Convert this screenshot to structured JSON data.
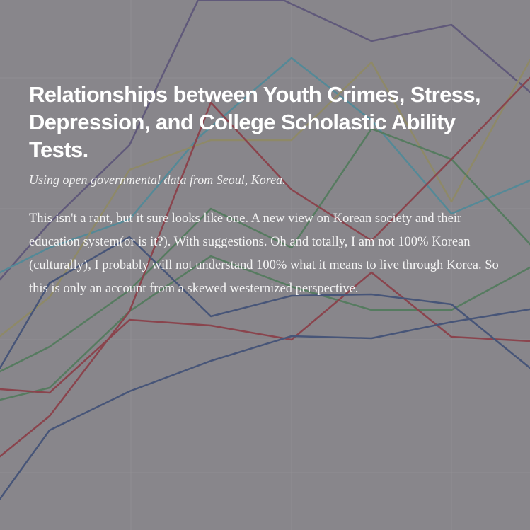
{
  "article": {
    "title": "Relationships between Youth Crimes, Stress, Depression, and College Scholastic Ability Tests.",
    "subtitle": "Using open governmental data from Seoul, Korea.",
    "intro": "This isn't a rant, but it sure looks like one. A new view on Korean society and their education system(or is it?). With suggestions. Oh and totally, I am not 100% Korean (culturally), I probably will not understand 100% what it means to live through Korea. So this is only an account from a skewed westernized perspective."
  },
  "colors": {
    "background": "#88878b",
    "grid": "#9a999d",
    "purple": "#5a5478",
    "teal": "#4d8a99",
    "olive": "#8f8a62",
    "green": "#4f7a5a",
    "red": "#8a3c45",
    "navy": "#3e4f76"
  }
}
